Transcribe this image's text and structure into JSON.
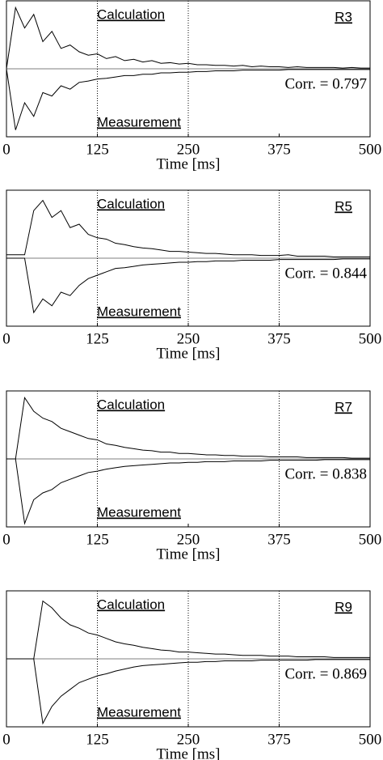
{
  "chart_data": [
    {
      "type": "line",
      "title": "R3",
      "annotation": "Corr. = 0.797",
      "xlabel": "Time [ms]",
      "xlim": [
        0,
        500
      ],
      "xticks": [
        0,
        125,
        250,
        375,
        500
      ],
      "ylim": [
        -1,
        1
      ],
      "vlines": [
        125,
        250
      ],
      "x": [
        0,
        12.5,
        25,
        37.5,
        50,
        62.5,
        75,
        87.5,
        100,
        112.5,
        125,
        137.5,
        150,
        162.5,
        175,
        187.5,
        200,
        212.5,
        225,
        237.5,
        250,
        262.5,
        275,
        287.5,
        300,
        312.5,
        325,
        337.5,
        350,
        362.5,
        375,
        387.5,
        400,
        412.5,
        425,
        437.5,
        450,
        462.5,
        475,
        487.5,
        500
      ],
      "series": [
        {
          "name": "Calculation",
          "color": "#000000",
          "values": [
            0,
            0.9,
            0.6,
            0.8,
            0.4,
            0.55,
            0.3,
            0.35,
            0.25,
            0.2,
            0.22,
            0.15,
            0.18,
            0.12,
            0.14,
            0.1,
            0.12,
            0.08,
            0.09,
            0.07,
            0.08,
            0.06,
            0.06,
            0.05,
            0.05,
            0.04,
            0.05,
            0.03,
            0.04,
            0.03,
            0.03,
            0.02,
            0.03,
            0.02,
            0.02,
            0.02,
            0.02,
            0.01,
            0.02,
            0.01,
            0.01
          ]
        },
        {
          "name": "Measurement",
          "color": "#000000",
          "values": [
            0,
            -0.9,
            -0.5,
            -0.7,
            -0.35,
            -0.4,
            -0.25,
            -0.3,
            -0.2,
            -0.18,
            -0.15,
            -0.14,
            -0.12,
            -0.1,
            -0.1,
            -0.08,
            -0.08,
            -0.06,
            -0.06,
            -0.05,
            -0.05,
            -0.04,
            -0.04,
            -0.03,
            -0.03,
            -0.03,
            -0.02,
            -0.02,
            -0.02,
            -0.02,
            -0.02,
            -0.01,
            -0.01,
            -0.01,
            -0.01,
            -0.01,
            -0.01,
            -0.01,
            -0.01,
            -0.01,
            -0.01
          ]
        }
      ]
    },
    {
      "type": "line",
      "title": "R5",
      "annotation": "Corr. = 0.844",
      "xlabel": "Time [ms]",
      "xlim": [
        0,
        500
      ],
      "xticks": [
        0,
        125,
        250,
        375,
        500
      ],
      "ylim": [
        -1,
        1
      ],
      "vlines": [
        125,
        250,
        375
      ],
      "x": [
        0,
        12.5,
        25,
        37.5,
        50,
        62.5,
        75,
        87.5,
        100,
        112.5,
        125,
        137.5,
        150,
        162.5,
        175,
        187.5,
        200,
        212.5,
        225,
        237.5,
        250,
        262.5,
        275,
        287.5,
        300,
        312.5,
        325,
        337.5,
        350,
        362.5,
        375,
        387.5,
        400,
        412.5,
        425,
        437.5,
        450,
        462.5,
        475,
        487.5,
        500
      ],
      "series": [
        {
          "name": "Calculation",
          "color": "#000000",
          "values": [
            0.05,
            0.05,
            0.05,
            0.7,
            0.85,
            0.6,
            0.7,
            0.45,
            0.5,
            0.35,
            0.3,
            0.28,
            0.22,
            0.2,
            0.17,
            0.15,
            0.14,
            0.12,
            0.1,
            0.1,
            0.09,
            0.08,
            0.07,
            0.07,
            0.06,
            0.05,
            0.05,
            0.05,
            0.04,
            0.04,
            0.04,
            0.05,
            0.03,
            0.03,
            0.03,
            0.03,
            0.02,
            0.02,
            0.02,
            0.02,
            0.02
          ]
        },
        {
          "name": "Measurement",
          "color": "#000000",
          "values": [
            0,
            0,
            0,
            -0.8,
            -0.6,
            -0.7,
            -0.5,
            -0.55,
            -0.4,
            -0.3,
            -0.25,
            -0.2,
            -0.15,
            -0.14,
            -0.12,
            -0.1,
            -0.09,
            -0.08,
            -0.07,
            -0.06,
            -0.06,
            -0.05,
            -0.05,
            -0.04,
            -0.04,
            -0.04,
            -0.03,
            -0.03,
            -0.03,
            -0.03,
            -0.02,
            -0.02,
            -0.02,
            -0.02,
            -0.02,
            -0.02,
            -0.02,
            -0.01,
            -0.01,
            -0.01,
            -0.01
          ]
        }
      ]
    },
    {
      "type": "line",
      "title": "R7",
      "annotation": "Corr. = 0.838",
      "xlabel": "Time [ms]",
      "xlim": [
        0,
        500
      ],
      "xticks": [
        0,
        125,
        250,
        375,
        500
      ],
      "ylim": [
        -1,
        1
      ],
      "vlines": [
        125,
        375
      ],
      "x": [
        0,
        12.5,
        25,
        37.5,
        50,
        62.5,
        75,
        87.5,
        100,
        112.5,
        125,
        137.5,
        150,
        162.5,
        175,
        187.5,
        200,
        212.5,
        225,
        237.5,
        250,
        262.5,
        275,
        287.5,
        300,
        312.5,
        325,
        337.5,
        350,
        362.5,
        375,
        387.5,
        400,
        412.5,
        425,
        437.5,
        450,
        462.5,
        475,
        487.5,
        500
      ],
      "series": [
        {
          "name": "Calculation",
          "color": "#000000",
          "values": [
            0,
            0,
            0.9,
            0.7,
            0.6,
            0.55,
            0.45,
            0.4,
            0.35,
            0.3,
            0.28,
            0.22,
            0.2,
            0.17,
            0.15,
            0.13,
            0.12,
            0.1,
            0.1,
            0.08,
            0.08,
            0.07,
            0.06,
            0.06,
            0.05,
            0.05,
            0.04,
            0.04,
            0.04,
            0.03,
            0.03,
            0.03,
            0.03,
            0.02,
            0.02,
            0.02,
            0.02,
            0.02,
            0.01,
            0.01,
            0.01
          ]
        },
        {
          "name": "Measurement",
          "color": "#000000",
          "values": [
            0,
            0,
            -0.95,
            -0.6,
            -0.5,
            -0.45,
            -0.35,
            -0.3,
            -0.25,
            -0.2,
            -0.18,
            -0.15,
            -0.13,
            -0.11,
            -0.1,
            -0.09,
            -0.08,
            -0.07,
            -0.06,
            -0.06,
            -0.05,
            -0.05,
            -0.04,
            -0.04,
            -0.04,
            -0.03,
            -0.03,
            -0.03,
            -0.03,
            -0.02,
            -0.02,
            -0.02,
            -0.02,
            -0.02,
            -0.02,
            -0.01,
            -0.01,
            -0.01,
            -0.01,
            -0.01,
            -0.01
          ]
        }
      ]
    },
    {
      "type": "line",
      "title": "R9",
      "annotation": "Corr. = 0.869",
      "xlabel": "Time [ms]",
      "xlim": [
        0,
        500
      ],
      "xticks": [
        0,
        125,
        250,
        375,
        500
      ],
      "ylim": [
        -1,
        1
      ],
      "vlines": [
        125,
        250,
        375
      ],
      "x": [
        0,
        12.5,
        25,
        37.5,
        50,
        62.5,
        75,
        87.5,
        100,
        112.5,
        125,
        137.5,
        150,
        162.5,
        175,
        187.5,
        200,
        212.5,
        225,
        237.5,
        250,
        262.5,
        275,
        287.5,
        300,
        312.5,
        325,
        337.5,
        350,
        362.5,
        375,
        387.5,
        400,
        412.5,
        425,
        437.5,
        450,
        462.5,
        475,
        487.5,
        500
      ],
      "series": [
        {
          "name": "Calculation",
          "color": "#000000",
          "values": [
            0,
            0,
            0,
            0,
            0.85,
            0.75,
            0.6,
            0.5,
            0.45,
            0.38,
            0.35,
            0.3,
            0.25,
            0.22,
            0.2,
            0.17,
            0.15,
            0.13,
            0.12,
            0.1,
            0.1,
            0.09,
            0.08,
            0.07,
            0.07,
            0.06,
            0.05,
            0.05,
            0.05,
            0.04,
            0.04,
            0.04,
            0.03,
            0.03,
            0.03,
            0.03,
            0.02,
            0.02,
            0.02,
            0.02,
            0.02
          ]
        },
        {
          "name": "Measurement",
          "color": "#000000",
          "values": [
            0,
            0,
            0,
            0,
            -0.95,
            -0.7,
            -0.55,
            -0.45,
            -0.35,
            -0.3,
            -0.25,
            -0.22,
            -0.18,
            -0.15,
            -0.12,
            -0.1,
            -0.09,
            -0.08,
            -0.07,
            -0.06,
            -0.05,
            -0.05,
            -0.04,
            -0.04,
            -0.03,
            -0.03,
            -0.03,
            -0.03,
            -0.02,
            -0.02,
            -0.02,
            -0.02,
            -0.02,
            -0.02,
            -0.01,
            -0.01,
            -0.01,
            -0.01,
            -0.01,
            -0.01,
            -0.01
          ]
        }
      ]
    }
  ]
}
